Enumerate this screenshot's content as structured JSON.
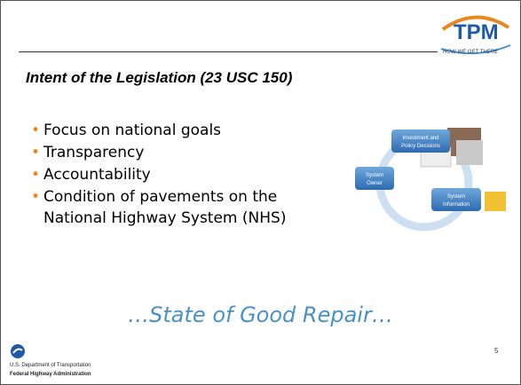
{
  "header": {
    "logo": "TPM",
    "logo_tagline": "HOW WE GET THERE"
  },
  "slide": {
    "title": "Intent of the Legislation (23 USC 150)",
    "bullets": [
      "Focus on national goals",
      "Transparency",
      "Accountability",
      "Condition of pavements on the National Highway System (NHS)"
    ],
    "tagline": "…State of Good Repair…",
    "page_number": "5"
  },
  "diagram": {
    "nodes": [
      {
        "label": "Investment and Policy Decisions"
      },
      {
        "label": "System Owner"
      },
      {
        "label": "System Information"
      }
    ]
  },
  "footer": {
    "department": "U.S. Department of Transportation",
    "agency": "Federal Highway Administration"
  }
}
